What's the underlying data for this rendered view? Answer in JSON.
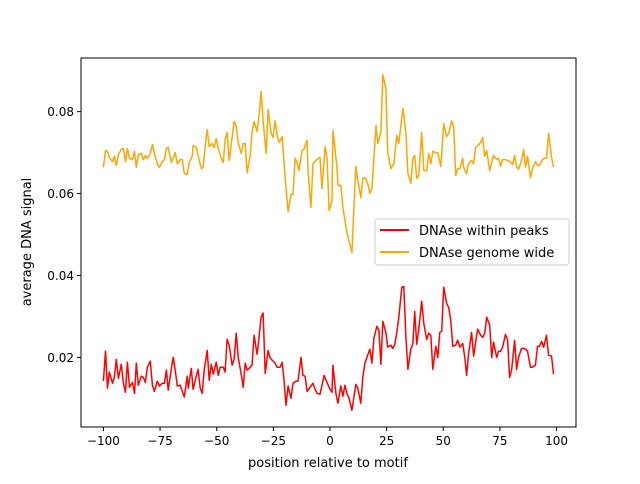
{
  "chart_data": {
    "type": "line",
    "title": "",
    "xlabel": "position relative to motif",
    "ylabel": "average DNA signal",
    "xlim": [
      -109.9,
      108.6
    ],
    "ylim": [
      0.003,
      0.0931
    ],
    "xticks": [
      -100,
      -75,
      -50,
      -25,
      0,
      25,
      50,
      75,
      100
    ],
    "xtick_labels": [
      "−100",
      "−75",
      "−50",
      "−25",
      "0",
      "25",
      "50",
      "75",
      "100"
    ],
    "yticks": [
      0.02,
      0.04,
      0.06,
      0.08
    ],
    "ytick_labels": [
      "0.02",
      "0.04",
      "0.06",
      "0.08"
    ],
    "grid": false,
    "legend_position": "center-right",
    "series": [
      {
        "name": "DNAse within peaks",
        "color": "#ff0000",
        "x": [
          -100.0,
          -99.1,
          -98.2,
          -97.4,
          -96.0,
          -95.2,
          -94.3,
          -93.4,
          -92.1,
          -91.2,
          -90.3,
          -89.4,
          -88.5,
          -87.2,
          -86.3,
          -85.5,
          -84.6,
          -83.3,
          -82.4,
          -81.5,
          -80.6,
          -79.3,
          -78.4,
          -77.5,
          -76.2,
          -75.3,
          -74.0,
          -73.1,
          -72.2,
          -71.4,
          -70.0,
          -69.2,
          -68.3,
          -67.4,
          -66.1,
          -64.3,
          -63.0,
          -62.6,
          -61.2,
          -60.4,
          -59.0,
          -58.2,
          -57.3,
          -56.4,
          -55.5,
          -54.2,
          -53.3,
          -52.4,
          -51.5,
          -50.2,
          -49.3,
          -48.5,
          -47.1,
          -46.3,
          -45.4,
          -44.5,
          -43.2,
          -42.3,
          -41.4,
          -40.5,
          -39.2,
          -38.3,
          -37.4,
          -36.6,
          -35.7,
          -34.4,
          -33.5,
          -32.2,
          -31.7,
          -30.4,
          -29.5,
          -28.6,
          -27.3,
          -26.4,
          -25.1,
          -24.2,
          -23.4,
          -22.0,
          -21.1,
          -20.3,
          -19.4,
          -18.5,
          -17.2,
          -16.3,
          -15.0,
          -14.1,
          -12.8,
          -11.9,
          -11.0,
          -10.1,
          -8.8,
          -7.5,
          -6.6,
          -5.7,
          -4.4,
          -2.6,
          -1.3,
          0.0,
          0.9,
          1.3,
          2.6,
          3.5,
          4.8,
          5.7,
          6.6,
          7.5,
          8.4,
          9.7,
          10.6,
          11.4,
          12.3,
          13.6,
          14.5,
          15.4,
          16.3,
          17.6,
          18.5,
          19.4,
          20.7,
          21.6,
          22.5,
          23.3,
          24.7,
          25.5,
          26.9,
          27.7,
          28.6,
          29.5,
          30.4,
          31.7,
          32.6,
          33.5,
          34.4,
          35.7,
          36.6,
          37.4,
          38.3,
          39.2,
          40.5,
          41.4,
          42.7,
          43.6,
          44.5,
          45.4,
          46.7,
          47.6,
          48.5,
          49.3,
          50.2,
          51.5,
          52.4,
          53.3,
          54.2,
          55.5,
          56.4,
          57.3,
          58.6,
          59.5,
          60.3,
          61.2,
          62.5,
          63.4,
          64.3,
          65.2,
          66.5,
          67.4,
          68.3,
          69.2,
          70.5,
          71.4,
          72.2,
          73.6,
          74.4,
          75.3,
          76.2,
          77.5,
          78.4,
          79.3,
          80.2,
          81.5,
          82.4,
          83.2,
          84.6,
          85.5,
          86.3,
          87.2,
          88.5,
          89.4,
          90.7,
          91.6,
          92.5,
          93.4,
          94.3,
          95.6,
          96.5,
          97.8,
          98.7
        ],
        "y": [
          0.0142,
          0.0215,
          0.0125,
          0.0164,
          0.0137,
          0.0151,
          0.0195,
          0.0149,
          0.0183,
          0.0137,
          0.0115,
          0.0188,
          0.0127,
          0.0139,
          0.0112,
          0.0186,
          0.0132,
          0.0154,
          0.0151,
          0.0139,
          0.0176,
          0.0191,
          0.0132,
          0.0117,
          0.0142,
          0.013,
          0.0137,
          0.0137,
          0.0169,
          0.012,
          0.0173,
          0.02,
          0.0169,
          0.013,
          0.0132,
          0.0103,
          0.0154,
          0.0125,
          0.0173,
          0.0122,
          0.0154,
          0.0171,
          0.0125,
          0.0112,
          0.0169,
          0.0217,
          0.0144,
          0.0183,
          0.0159,
          0.0188,
          0.0156,
          0.0176,
          0.0176,
          0.0164,
          0.0244,
          0.023,
          0.0181,
          0.0195,
          0.0259,
          0.02,
          0.0159,
          0.0127,
          0.0186,
          0.0169,
          0.0173,
          0.0181,
          0.0254,
          0.0208,
          0.023,
          0.0298,
          0.0308,
          0.0161,
          0.0217,
          0.0198,
          0.0191,
          0.0186,
          0.0176,
          0.0176,
          0.0188,
          0.0144,
          0.0083,
          0.013,
          0.01,
          0.0137,
          0.0142,
          0.0142,
          0.02,
          0.0156,
          0.0154,
          0.0117,
          0.0127,
          0.0137,
          0.0122,
          0.0112,
          0.011,
          0.0156,
          0.0139,
          0.0122,
          0.0115,
          0.0181,
          0.0112,
          0.0088,
          0.013,
          0.0105,
          0.0132,
          0.0112,
          0.01,
          0.0071,
          0.0105,
          0.0134,
          0.0125,
          0.0088,
          0.0151,
          0.0186,
          0.02,
          0.022,
          0.0186,
          0.0247,
          0.0276,
          0.0266,
          0.0183,
          0.0288,
          0.0261,
          0.0225,
          0.023,
          0.0222,
          0.0232,
          0.0261,
          0.0298,
          0.0371,
          0.0373,
          0.0249,
          0.0171,
          0.022,
          0.0234,
          0.0312,
          0.0232,
          0.0269,
          0.0337,
          0.0283,
          0.0244,
          0.0259,
          0.0254,
          0.0171,
          0.0227,
          0.02,
          0.0261,
          0.0264,
          0.0371,
          0.0332,
          0.0322,
          0.0291,
          0.0227,
          0.023,
          0.0242,
          0.0225,
          0.0234,
          0.02,
          0.0156,
          0.021,
          0.0261,
          0.0203,
          0.0237,
          0.0269,
          0.0254,
          0.0249,
          0.0259,
          0.0298,
          0.0278,
          0.02,
          0.0237,
          0.02,
          0.0215,
          0.0215,
          0.0225,
          0.0256,
          0.0242,
          0.0151,
          0.0171,
          0.0242,
          0.0171,
          0.02,
          0.0222,
          0.0222,
          0.022,
          0.0215,
          0.0176,
          0.0176,
          0.0181,
          0.0227,
          0.0227,
          0.0239,
          0.0225,
          0.0254,
          0.0205,
          0.0203,
          0.0159
        ]
      },
      {
        "name": "DNAse genome wide",
        "color": "#ffa500",
        "x": [
          -100.0,
          -99.1,
          -98.2,
          -97.4,
          -96.0,
          -95.2,
          -94.3,
          -93.4,
          -92.1,
          -91.2,
          -90.3,
          -89.4,
          -88.5,
          -87.2,
          -86.3,
          -85.5,
          -84.6,
          -83.3,
          -82.4,
          -81.5,
          -80.6,
          -79.3,
          -78.4,
          -77.5,
          -76.2,
          -75.3,
          -74.0,
          -73.1,
          -72.2,
          -71.4,
          -70.0,
          -68.3,
          -67.4,
          -66.1,
          -65.2,
          -64.3,
          -63.0,
          -62.1,
          -60.8,
          -60.4,
          -59.0,
          -58.2,
          -56.8,
          -56.0,
          -55.1,
          -54.2,
          -53.3,
          -52.0,
          -51.1,
          -50.2,
          -49.3,
          -48.0,
          -47.1,
          -46.3,
          -45.4,
          -44.5,
          -43.2,
          -42.3,
          -41.4,
          -40.5,
          -39.2,
          -38.3,
          -37.4,
          -36.6,
          -35.2,
          -34.4,
          -33.5,
          -32.2,
          -31.3,
          -30.4,
          -29.5,
          -28.2,
          -27.3,
          -26.0,
          -25.1,
          -24.2,
          -23.4,
          -22.5,
          -21.1,
          -19.8,
          -18.5,
          -17.2,
          -16.3,
          -15.4,
          -14.5,
          -13.7,
          -12.3,
          -11.5,
          -10.1,
          -9.7,
          -8.4,
          -7.5,
          -6.2,
          -5.3,
          -4.4,
          -3.5,
          -2.2,
          -1.3,
          -0.4,
          0.9,
          1.3,
          3.1,
          3.5,
          4.8,
          5.7,
          7.5,
          9.7,
          11.4,
          12.3,
          13.6,
          14.5,
          15.4,
          16.7,
          17.6,
          18.5,
          20.3,
          21.1,
          22.5,
          23.3,
          24.7,
          25.5,
          26.9,
          28.2,
          29.5,
          30.4,
          32.2,
          33.5,
          34.4,
          35.7,
          36.6,
          37.4,
          38.3,
          39.2,
          40.5,
          41.4,
          42.7,
          43.6,
          44.5,
          45.4,
          46.7,
          47.6,
          48.9,
          49.8,
          50.2,
          51.5,
          52.4,
          53.7,
          54.6,
          55.5,
          56.4,
          57.3,
          58.6,
          59.0,
          60.3,
          61.2,
          62.5,
          63.4,
          64.3,
          65.2,
          66.5,
          67.4,
          68.3,
          69.2,
          70.5,
          71.4,
          72.2,
          73.6,
          74.4,
          75.3,
          76.2,
          77.5,
          78.4,
          79.7,
          80.6,
          81.5,
          82.4,
          83.2,
          84.6,
          85.5,
          86.3,
          87.2,
          88.5,
          89.4,
          90.7,
          91.6,
          92.5,
          93.8,
          94.7,
          95.6,
          96.5,
          97.8,
          98.7
        ],
        "y": [
          0.0664,
          0.0705,
          0.0703,
          0.0688,
          0.0678,
          0.0691,
          0.0669,
          0.0695,
          0.0708,
          0.071,
          0.0678,
          0.071,
          0.0686,
          0.0683,
          0.0703,
          0.0664,
          0.0695,
          0.0698,
          0.0683,
          0.0693,
          0.0686,
          0.0698,
          0.072,
          0.0698,
          0.0673,
          0.0664,
          0.0678,
          0.0683,
          0.071,
          0.0713,
          0.0676,
          0.07,
          0.0673,
          0.0683,
          0.0683,
          0.0649,
          0.0647,
          0.0676,
          0.0691,
          0.0717,
          0.0713,
          0.0693,
          0.0661,
          0.0664,
          0.0713,
          0.0756,
          0.0715,
          0.0722,
          0.0713,
          0.0734,
          0.071,
          0.0686,
          0.0676,
          0.0732,
          0.0749,
          0.0681,
          0.0737,
          0.0776,
          0.0764,
          0.0725,
          0.0698,
          0.0722,
          0.0722,
          0.0651,
          0.0693,
          0.0749,
          0.0776,
          0.0752,
          0.0791,
          0.0849,
          0.0778,
          0.0698,
          0.0805,
          0.0747,
          0.0737,
          0.0778,
          0.0744,
          0.0725,
          0.0739,
          0.0639,
          0.0556,
          0.0598,
          0.0598,
          0.0686,
          0.0676,
          0.0656,
          0.0705,
          0.0708,
          0.073,
          0.0656,
          0.0566,
          0.0673,
          0.0681,
          0.0686,
          0.0688,
          0.0612,
          0.0715,
          0.0688,
          0.0559,
          0.0583,
          0.0754,
          0.0664,
          0.062,
          0.062,
          0.0566,
          0.0503,
          0.0456,
          0.0666,
          0.0632,
          0.059,
          0.0637,
          0.0639,
          0.0625,
          0.06,
          0.0612,
          0.0766,
          0.0722,
          0.0749,
          0.089,
          0.0856,
          0.07,
          0.0661,
          0.0673,
          0.0742,
          0.0722,
          0.0808,
          0.0747,
          0.0649,
          0.0625,
          0.0686,
          0.0693,
          0.0637,
          0.0644,
          0.0749,
          0.0656,
          0.0656,
          0.0698,
          0.0673,
          0.0703,
          0.07,
          0.07,
          0.0666,
          0.0737,
          0.0771,
          0.0739,
          0.0747,
          0.0778,
          0.0761,
          0.0644,
          0.0661,
          0.0661,
          0.0686,
          0.0664,
          0.0649,
          0.0673,
          0.0681,
          0.0673,
          0.0712,
          0.0717,
          0.0725,
          0.0737,
          0.0691,
          0.0705,
          0.0656,
          0.0676,
          0.0693,
          0.0683,
          0.0686,
          0.0666,
          0.0683,
          0.0683,
          0.0681,
          0.0676,
          0.0671,
          0.0693,
          0.0666,
          0.0659,
          0.0681,
          0.0708,
          0.0664,
          0.0691,
          0.0639,
          0.0661,
          0.0678,
          0.0669,
          0.0669,
          0.0683,
          0.0686,
          0.0686,
          0.0747,
          0.0688,
          0.0664
        ]
      }
    ]
  }
}
